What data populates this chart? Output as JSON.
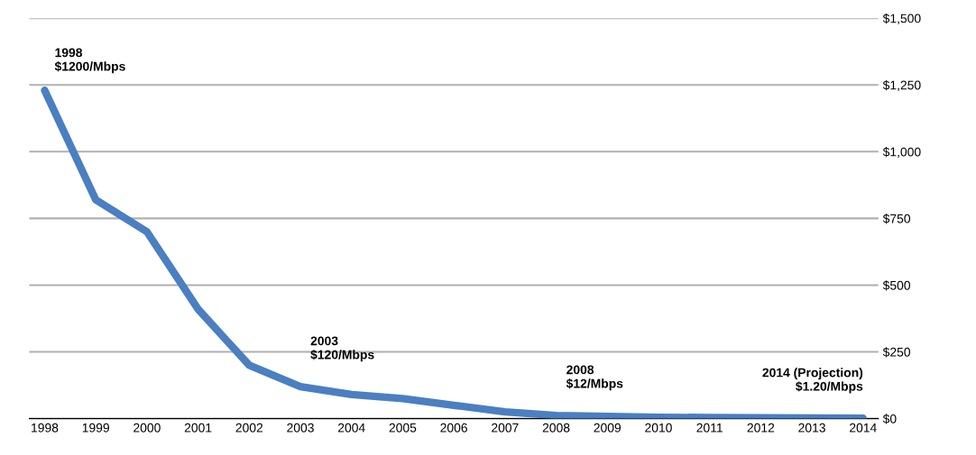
{
  "chart_data": {
    "type": "line",
    "categories": [
      "1998",
      "1999",
      "2000",
      "2001",
      "2002",
      "2003",
      "2004",
      "2005",
      "2006",
      "2007",
      "2008",
      "2009",
      "2010",
      "2011",
      "2012",
      "2013",
      "2014"
    ],
    "series": [
      {
        "color": "#4a7fc1",
        "values": [
          1230,
          820,
          700,
          410,
          200,
          120,
          90,
          75,
          50,
          25,
          12,
          8,
          5,
          4,
          3,
          2,
          1.2
        ]
      }
    ],
    "ylim": [
      0,
      1500
    ],
    "yticks": [
      {
        "value": 0,
        "label": "$0"
      },
      {
        "value": 250,
        "label": "$250"
      },
      {
        "value": 500,
        "label": "$500"
      },
      {
        "value": 750,
        "label": "$750"
      },
      {
        "value": 1000,
        "label": "$1,000"
      },
      {
        "value": 1250,
        "label": "$1,250"
      },
      {
        "value": 1500,
        "label": "$1,500"
      }
    ],
    "grid": "y",
    "legend": false,
    "marker": "none",
    "line_style": "solid",
    "annotations": [
      {
        "text": "1998\n$1200/Mbps",
        "x": "1998",
        "y": 1200
      },
      {
        "text": "2003\n$120/Mbps",
        "x": "2003",
        "y": 120
      },
      {
        "text": "2008\n$12/Mbps",
        "x": "2008",
        "y": 12
      },
      {
        "text": "2014 (Projection)\n$1.20/Mbps",
        "x": "2014",
        "y": 1.2
      }
    ]
  }
}
